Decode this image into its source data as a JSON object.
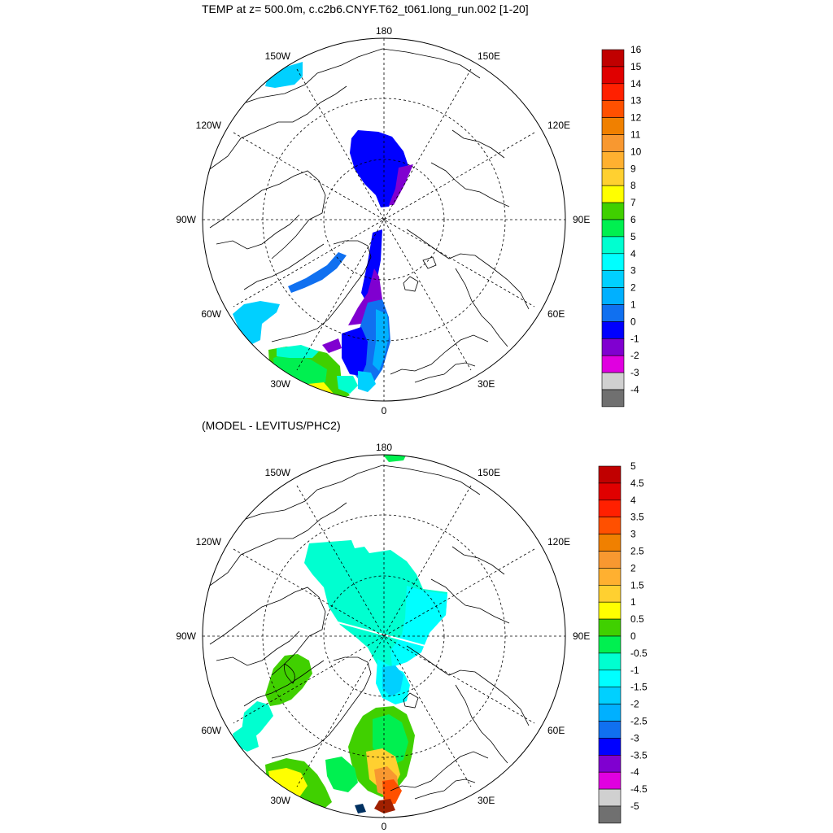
{
  "panels": [
    {
      "title": "TEMP at z= 500.0m, c.c2b6.CNYF.T62_t061.long_run.002 [1-20]",
      "colorbar": {
        "levels": [
          "16",
          "15",
          "14",
          "13",
          "12",
          "11",
          "10",
          "9",
          "8",
          "7",
          "6",
          "5",
          "4",
          "3",
          "2",
          "1",
          "0",
          "-1",
          "-2",
          "-3",
          "-4"
        ],
        "colors": [
          "#c00000",
          "#e00000",
          "#ff2000",
          "#ff5000",
          "#f08000",
          "#f89830",
          "#ffb030",
          "#ffd030",
          "#ffff00",
          "#40d000",
          "#00f050",
          "#00ffd0",
          "#00ffff",
          "#00d0ff",
          "#00b0ff",
          "#1070f0",
          "#0000ff",
          "#8000d0",
          "#e000e0",
          "#d0d0d0",
          "#707070"
        ]
      },
      "labels": {
        "north": "180",
        "south": "0",
        "w150": "150W",
        "e150": "150E",
        "w120": "120W",
        "e120": "120E",
        "w90": "90W",
        "e90": "90E",
        "w60": "60W",
        "e60": "60E",
        "w30": "30W",
        "e30": "30E"
      }
    },
    {
      "title": "(MODEL - LEVITUS/PHC2)",
      "colorbar": {
        "levels": [
          "5",
          "4.5",
          "4",
          "3.5",
          "3",
          "2.5",
          "2",
          "1.5",
          "1",
          "0.5",
          "0",
          "-0.5",
          "-1",
          "-1.5",
          "-2",
          "-2.5",
          "-3",
          "-3.5",
          "-4",
          "-4.5",
          "-5"
        ],
        "colors": [
          "#c00000",
          "#e00000",
          "#ff2000",
          "#ff5000",
          "#f08000",
          "#f89830",
          "#ffb030",
          "#ffd030",
          "#ffff00",
          "#40d000",
          "#00f050",
          "#00ffd0",
          "#00ffff",
          "#00d0ff",
          "#00b0ff",
          "#1070f0",
          "#0000ff",
          "#8000d0",
          "#e000e0",
          "#d0d0d0",
          "#707070"
        ]
      },
      "labels": {
        "north": "180",
        "south": "0",
        "w150": "150W",
        "e150": "150E",
        "w120": "120W",
        "e120": "120E",
        "w90": "90W",
        "e90": "90E",
        "w60": "60W",
        "e60": "60E",
        "w30": "30W",
        "e30": "30E"
      }
    }
  ]
}
